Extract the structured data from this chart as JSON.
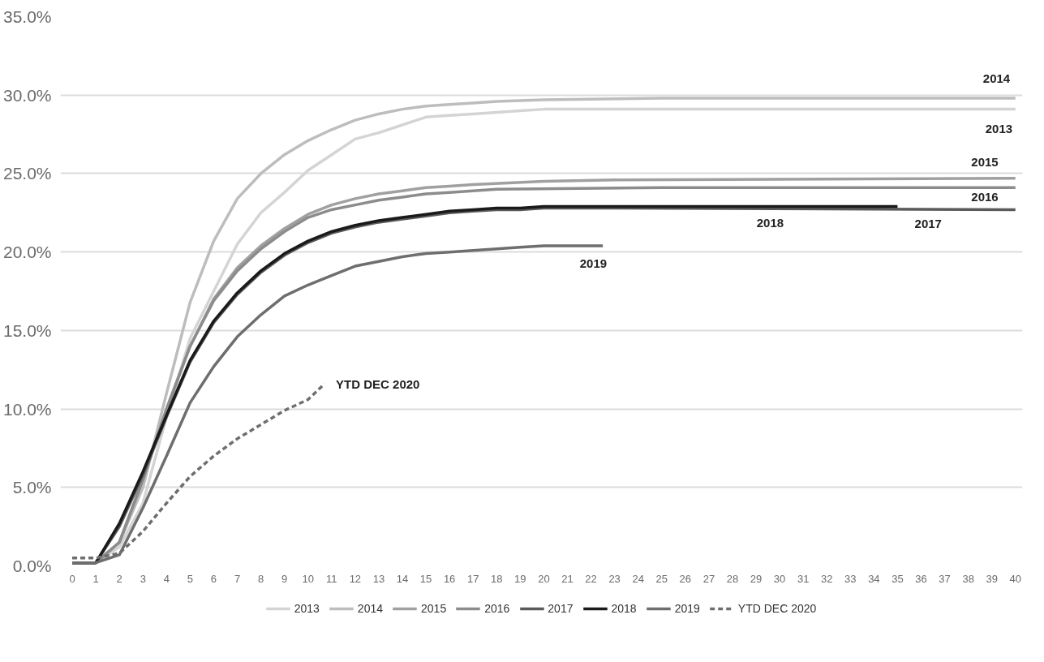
{
  "chart_data": {
    "type": "line",
    "ylim": [
      0,
      35
    ],
    "yticks": [
      {
        "value": 0,
        "label": "0.0%"
      },
      {
        "value": 5,
        "label": "5.0%"
      },
      {
        "value": 10,
        "label": "10.0%"
      },
      {
        "value": 15,
        "label": "15.0%"
      },
      {
        "value": 20,
        "label": "20.0%"
      },
      {
        "value": 25,
        "label": "25.0%"
      },
      {
        "value": 30,
        "label": "30.0%"
      },
      {
        "value": 35,
        "label": "35.0%"
      }
    ],
    "xlim": [
      -0.5,
      40.3
    ],
    "xticks": [
      0,
      1,
      2,
      3,
      4,
      5,
      6,
      7,
      8,
      9,
      10,
      11,
      12,
      13,
      14,
      15,
      16,
      17,
      18,
      19,
      20,
      21,
      22,
      23,
      24,
      25,
      26,
      27,
      28,
      29,
      30,
      31,
      32,
      33,
      34,
      35,
      36,
      37,
      38,
      39,
      40
    ],
    "grid": "y",
    "legend": "bottom",
    "line_style": "solid",
    "marker": "none",
    "series": [
      {
        "name": "2013",
        "color": "#d4d4d4",
        "x": [
          0,
          1,
          2,
          3,
          4,
          5,
          6,
          7,
          8,
          9,
          10,
          11,
          12,
          13,
          14,
          15,
          16,
          17,
          18,
          19,
          20,
          25,
          30,
          35,
          40
        ],
        "values": [
          0.2,
          0.2,
          1.2,
          4.0,
          9.5,
          14.5,
          17.5,
          20.5,
          22.5,
          23.8,
          25.2,
          26.2,
          27.2,
          27.6,
          28.1,
          28.6,
          28.7,
          28.8,
          28.9,
          29.0,
          29.1,
          29.1,
          29.1,
          29.1,
          29.1
        ]
      },
      {
        "name": "2014",
        "color": "#bdbdbd",
        "x": [
          0,
          1,
          2,
          3,
          4,
          5,
          6,
          7,
          8,
          9,
          10,
          11,
          12,
          13,
          14,
          15,
          16,
          17,
          18,
          20,
          25,
          30,
          35,
          40
        ],
        "values": [
          0.2,
          0.2,
          1.5,
          5.0,
          11.0,
          16.8,
          20.7,
          23.4,
          25.0,
          26.2,
          27.1,
          27.8,
          28.4,
          28.8,
          29.1,
          29.3,
          29.4,
          29.5,
          29.6,
          29.7,
          29.8,
          29.8,
          29.8,
          29.8
        ]
      },
      {
        "name": "2015",
        "color": "#a0a0a0",
        "x": [
          0,
          1,
          2,
          3,
          4,
          5,
          6,
          7,
          8,
          9,
          10,
          11,
          12,
          13,
          14,
          15,
          16,
          17,
          20,
          23,
          40
        ],
        "values": [
          0.2,
          0.2,
          1.5,
          5.5,
          10.0,
          14.0,
          17.0,
          19.0,
          20.4,
          21.5,
          22.4,
          23.0,
          23.4,
          23.7,
          23.9,
          24.1,
          24.2,
          24.3,
          24.5,
          24.6,
          24.7
        ]
      },
      {
        "name": "2016",
        "color": "#8c8c8c",
        "x": [
          0,
          1,
          2,
          3,
          4,
          5,
          6,
          7,
          8,
          9,
          10,
          11,
          12,
          13,
          14,
          15,
          16,
          17,
          18,
          25,
          40
        ],
        "values": [
          0.2,
          0.2,
          1.5,
          5.5,
          10.0,
          14.0,
          16.9,
          18.8,
          20.2,
          21.3,
          22.2,
          22.7,
          23.0,
          23.3,
          23.5,
          23.7,
          23.8,
          23.9,
          24.0,
          24.1,
          24.1
        ]
      },
      {
        "name": "2017",
        "color": "#5a5a5a",
        "x": [
          0,
          1,
          2,
          3,
          4,
          5,
          6,
          7,
          8,
          9,
          10,
          11,
          12,
          13,
          14,
          15,
          16,
          17,
          18,
          19,
          20,
          23,
          40
        ],
        "values": [
          0.2,
          0.2,
          2.5,
          5.8,
          9.5,
          13.0,
          15.5,
          17.3,
          18.7,
          19.8,
          20.6,
          21.2,
          21.6,
          21.9,
          22.1,
          22.3,
          22.5,
          22.6,
          22.7,
          22.7,
          22.8,
          22.8,
          22.7
        ]
      },
      {
        "name": "2018",
        "color": "#1a1a1a",
        "x": [
          0,
          1,
          2,
          3,
          4,
          5,
          6,
          7,
          8,
          9,
          10,
          11,
          12,
          13,
          14,
          15,
          16,
          17,
          18,
          19,
          20,
          23,
          35
        ],
        "values": [
          0.2,
          0.2,
          2.7,
          6.0,
          9.6,
          13.1,
          15.6,
          17.4,
          18.8,
          19.9,
          20.7,
          21.3,
          21.7,
          22.0,
          22.2,
          22.4,
          22.6,
          22.7,
          22.8,
          22.8,
          22.9,
          22.9,
          22.9
        ]
      },
      {
        "name": "2019",
        "color": "#6e6e6e",
        "x": [
          0,
          1,
          2,
          3,
          4,
          5,
          6,
          7,
          8,
          9,
          10,
          11,
          12,
          13,
          14,
          15,
          16,
          17,
          18,
          19,
          20,
          21,
          22.5
        ],
        "values": [
          0.2,
          0.2,
          0.7,
          3.7,
          7.0,
          10.4,
          12.7,
          14.6,
          16.0,
          17.2,
          17.9,
          18.5,
          19.1,
          19.4,
          19.7,
          19.9,
          20.0,
          20.1,
          20.2,
          20.3,
          20.4,
          20.4,
          20.4
        ]
      },
      {
        "name": "YTD DEC 2020",
        "color": "#6e6e6e",
        "line_style": "dashed",
        "x": [
          0,
          1,
          2,
          3,
          4,
          5,
          6,
          7,
          8,
          9,
          10,
          10.7
        ],
        "values": [
          0.5,
          0.5,
          0.8,
          2.2,
          4.0,
          5.7,
          7.0,
          8.1,
          9.0,
          9.9,
          10.6,
          11.6
        ]
      }
    ],
    "annotations": [
      {
        "text": "2014",
        "x": 39.2,
        "y": 29.8
      },
      {
        "text": "2013",
        "x": 39.3,
        "y": 29.1
      },
      {
        "text": "2015",
        "x": 38.7,
        "y": 24.7
      },
      {
        "text": "2016",
        "x": 38.7,
        "y": 24.1
      },
      {
        "text": "2017",
        "x": 36.3,
        "y": 22.7
      },
      {
        "text": "2018",
        "x": 29.6,
        "y": 22.9
      },
      {
        "text": "2019",
        "x": 22.1,
        "y": 20.4
      },
      {
        "text": "YTD DEC 2020",
        "x": 10.7,
        "y": 11.6
      }
    ]
  }
}
